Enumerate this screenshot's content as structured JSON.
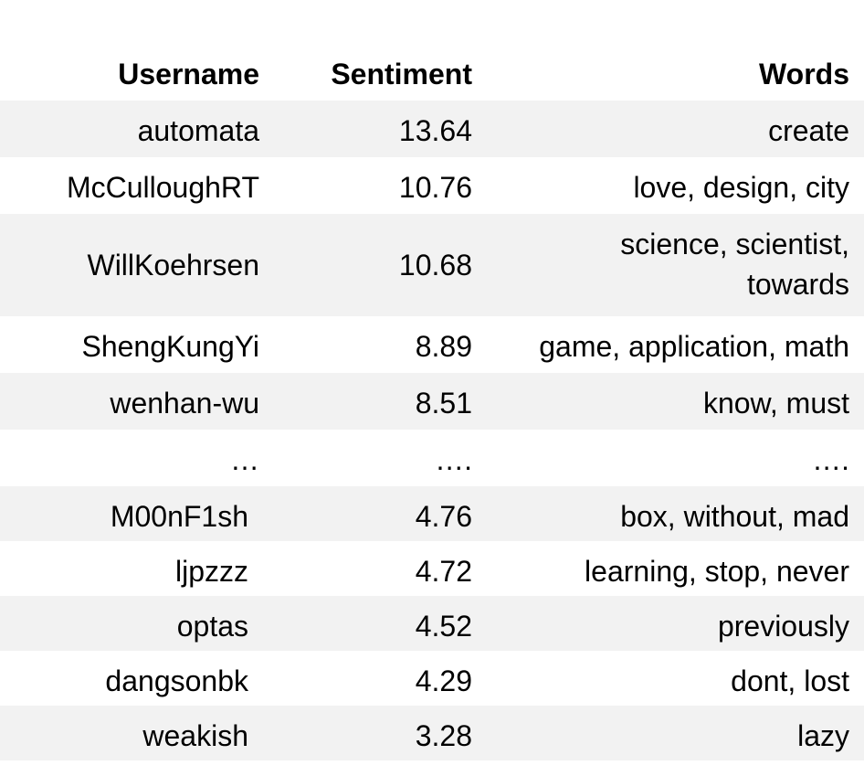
{
  "table": {
    "headers": {
      "username": "Username",
      "sentiment": "Sentiment",
      "words": "Words"
    },
    "rows": [
      {
        "username": "automata",
        "sentiment": "13.64",
        "words": "create"
      },
      {
        "username": "McCulloughRT",
        "sentiment": "10.76",
        "words": "love, design, city"
      },
      {
        "username": "WillKoehrsen",
        "sentiment": "10.68",
        "words_line1": "science, scientist,",
        "words_line2": "towards"
      },
      {
        "username": "ShengKungYi",
        "sentiment": "8.89",
        "words": "game, application, math"
      },
      {
        "username": "wenhan-wu",
        "sentiment": "8.51",
        "words": "know, must"
      },
      {
        "username": "…",
        "sentiment": "….",
        "words": "…."
      },
      {
        "username": "M00nF1sh",
        "sentiment": "4.76",
        "words": "box, without, mad"
      },
      {
        "username": "ljpzzz",
        "sentiment": "4.72",
        "words": "learning, stop, never"
      },
      {
        "username": "optas",
        "sentiment": "4.52",
        "words": "previously"
      },
      {
        "username": "dangsonbk",
        "sentiment": "4.29",
        "words": "dont, lost"
      },
      {
        "username": "weakish",
        "sentiment": "3.28",
        "words": "lazy"
      }
    ],
    "colors": {
      "stripe": "#f2f2f2",
      "background": "#ffffff",
      "text": "#000000"
    }
  }
}
